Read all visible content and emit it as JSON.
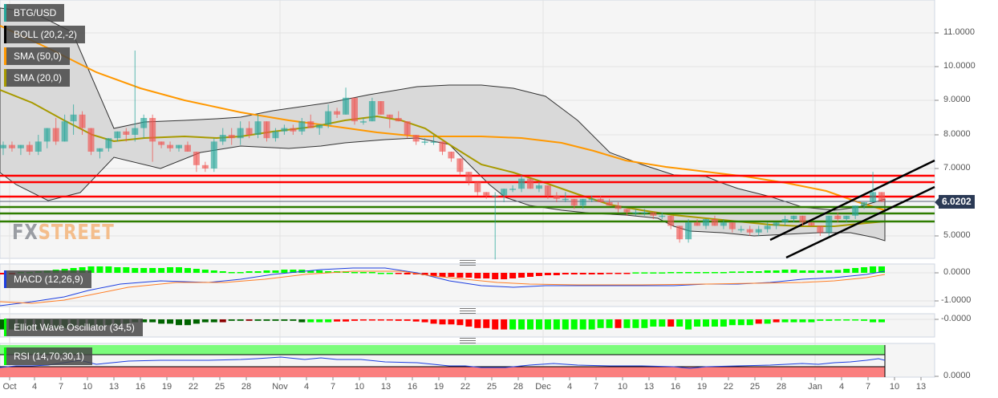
{
  "legends": {
    "symbol": {
      "label": "BTG/USD",
      "color": "#26a69a"
    },
    "boll": {
      "label": "BOLL (20,2,-2)",
      "color": "#000000"
    },
    "sma50": {
      "label": "SMA (50,0)",
      "color": "#ff9800"
    },
    "sma20": {
      "label": "SMA (20,0)",
      "color": "#a89a00"
    },
    "macd": {
      "label": "MACD (12,26,9)",
      "color": "#1e3fe0"
    },
    "ewo": {
      "label": "Elliott Wave Oscillator (34,5)",
      "color": "#00ff00"
    },
    "rsi": {
      "label": "RSI (14,70,30,1)",
      "color": "#00ff00"
    }
  },
  "price_axis": [
    "11.0000",
    "10.0000",
    "9.0000",
    "8.0000",
    "7.0000",
    "5.0000"
  ],
  "current_price": "6.0202",
  "macd_axis": [
    "0.0000",
    "-1.0000"
  ],
  "ewo_axis": [
    "-0.0000"
  ],
  "rsi_axis": [
    "0.0000"
  ],
  "x_axis": [
    "Oct",
    "4",
    "7",
    "10",
    "13",
    "16",
    "19",
    "22",
    "25",
    "28",
    "Nov",
    "4",
    "7",
    "10",
    "13",
    "16",
    "19",
    "22",
    "25",
    "28",
    "Dec",
    "4",
    "7",
    "10",
    "13",
    "16",
    "19",
    "22",
    "25",
    "28",
    "Jan",
    "4",
    "7",
    "10",
    "13"
  ],
  "watermark": {
    "fx": "FX",
    "street": "STREET"
  },
  "colors": {
    "bull": "#26a69a",
    "bear": "#ef5350",
    "resistance": "#ff0000",
    "support": "#2e7d00",
    "price_line": "#2b3a55",
    "trendline": "#000000",
    "boll_fill": "#d9d9d9",
    "rsi_overbought": "#7cfc7c",
    "rsi_oversold": "#fa7f7f"
  },
  "chart_data": {
    "type": "candlestick",
    "title": "BTG/USD",
    "ylim": [
      4.3,
      11.9
    ],
    "yticks": [
      5,
      7,
      8,
      9,
      10,
      11
    ],
    "x_start": "Oct 1",
    "x_end": "Jan 9",
    "horizontal_levels": {
      "resistance": [
        6.78,
        6.6,
        6.17
      ],
      "support": [
        5.85,
        5.65,
        5.42
      ],
      "current": 6.0202
    },
    "trend_channel": {
      "upper": [
        [
          5.2,
          "Dec 27"
        ],
        [
          7.2,
          "Jan 14"
        ]
      ],
      "lower": [
        [
          4.4,
          "Dec 28"
        ],
        [
          6.4,
          "Jan 14"
        ]
      ]
    },
    "indicators": [
      "BOLL (20,2,-2)",
      "SMA (50,0)",
      "SMA (20,0)",
      "MACD (12,26,9)",
      "Elliott Wave Oscillator (34,5)",
      "RSI (14,70,30,1)"
    ],
    "candles_approx": [
      {
        "date": "Oct 1",
        "o": 7.6,
        "h": 7.8,
        "l": 7.4,
        "c": 7.7
      },
      {
        "date": "Oct 7",
        "o": 7.8,
        "h": 8.6,
        "l": 7.6,
        "c": 8.2
      },
      {
        "date": "Oct 10",
        "o": 8.3,
        "h": 8.7,
        "l": 7.8,
        "c": 8.6
      },
      {
        "date": "Oct 12",
        "o": 8.2,
        "h": 8.2,
        "l": 7.4,
        "c": 7.5
      },
      {
        "date": "Oct 16",
        "o": 8.0,
        "h": 10.5,
        "l": 7.8,
        "c": 8.1
      },
      {
        "date": "Oct 18",
        "o": 8.6,
        "h": 8.8,
        "l": 7.2,
        "c": 7.8
      },
      {
        "date": "Oct 24",
        "o": 7.1,
        "h": 7.2,
        "l": 6.9,
        "c": 7.0
      },
      {
        "date": "Oct 25",
        "o": 7.0,
        "h": 7.8,
        "l": 6.9,
        "c": 7.8
      },
      {
        "date": "Nov 6",
        "o": 9.0,
        "h": 9.4,
        "l": 8.6,
        "c": 9.2
      },
      {
        "date": "Nov 9",
        "o": 8.4,
        "h": 9.1,
        "l": 8.4,
        "c": 9.0
      },
      {
        "date": "Nov 18",
        "o": 7.9,
        "h": 8.0,
        "l": 7.3,
        "c": 7.5
      },
      {
        "date": "Nov 22",
        "o": 7.2,
        "h": 7.2,
        "l": 6.4,
        "c": 6.6
      },
      {
        "date": "Nov 25",
        "o": 6.3,
        "h": 6.3,
        "l": 4.3,
        "c": 6.2
      },
      {
        "date": "Nov 27",
        "o": 6.2,
        "h": 6.6,
        "l": 6.0,
        "c": 6.5
      },
      {
        "date": "Dec 16",
        "o": 5.2,
        "h": 5.2,
        "l": 4.8,
        "c": 4.9
      },
      {
        "date": "Dec 17",
        "o": 4.9,
        "h": 5.5,
        "l": 4.8,
        "c": 5.3
      },
      {
        "date": "Jan 6",
        "o": 5.6,
        "h": 6.0,
        "l": 5.5,
        "c": 5.9
      },
      {
        "date": "Jan 7",
        "o": 6.0,
        "h": 6.9,
        "l": 6.0,
        "c": 6.3
      },
      {
        "date": "Jan 8",
        "o": 6.2,
        "h": 6.3,
        "l": 6.0,
        "c": 6.0202
      }
    ],
    "macd": {
      "ylim": [
        -1.25,
        0.2
      ],
      "range_note": "MACD line near -0.6 in Oct, rising to ~0.1 in mid-Nov, dipping to ~-0.4 in Dec, rising to ~0 by Jan 8"
    },
    "rsi": {
      "overbought": 70,
      "oversold": 30,
      "last": 62
    }
  }
}
